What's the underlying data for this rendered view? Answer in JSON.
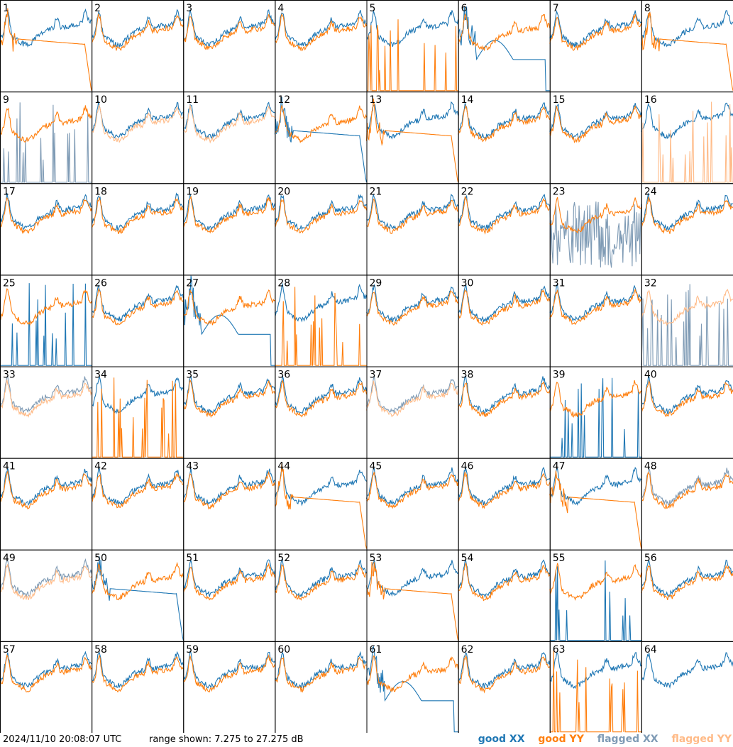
{
  "footer": {
    "timestamp": "2024/11/10 20:08:07 UTC",
    "range": "range shown: 7.275 to 27.275 dB"
  },
  "legend": [
    {
      "label": "good XX",
      "color": "#1f77b4"
    },
    {
      "label": "good YY",
      "color": "#ff7f0e"
    },
    {
      "label": "flagged XX",
      "color": "#7f9bb5"
    },
    {
      "label": "flagged YY",
      "color": "#ffbb88"
    }
  ],
  "colors": {
    "good_xx": "#1f77b4",
    "good_yy": "#ff7f0e",
    "flagged_xx": "#7f9bb5",
    "flagged_yy": "#ffbb88"
  },
  "chart_data": {
    "type": "line",
    "layout": "8x8 small multiples, one panel per antenna tile",
    "y_range_db": [
      7.275,
      27.275
    ],
    "panels": [
      {
        "id": 1,
        "xx": "good",
        "yy": "good",
        "yy_shape": "rolloff"
      },
      {
        "id": 2,
        "xx": "good",
        "yy": "good"
      },
      {
        "id": 3,
        "xx": "good",
        "yy": "good"
      },
      {
        "id": 4,
        "xx": "good",
        "yy": "good"
      },
      {
        "id": 5,
        "xx": "good",
        "yy": "good",
        "yy_shape": "spikes"
      },
      {
        "id": 6,
        "xx": "good",
        "yy": "good",
        "xx_shape": "dip"
      },
      {
        "id": 7,
        "xx": "good",
        "yy": "good"
      },
      {
        "id": 8,
        "xx": "good",
        "yy": "good",
        "yy_shape": "rolloff"
      },
      {
        "id": 9,
        "xx": "flagged",
        "yy": "good",
        "xx_shape": "spikes"
      },
      {
        "id": 10,
        "xx": "good",
        "yy": "flagged"
      },
      {
        "id": 11,
        "xx": "good",
        "yy": "flagged"
      },
      {
        "id": 12,
        "xx": "good",
        "yy": "good",
        "xx_shape": "rolloff"
      },
      {
        "id": 13,
        "xx": "good",
        "yy": "good",
        "yy_shape": "rolloff"
      },
      {
        "id": 14,
        "xx": "good",
        "yy": "good"
      },
      {
        "id": 15,
        "xx": "good",
        "yy": "good"
      },
      {
        "id": 16,
        "xx": "good",
        "yy": "flagged",
        "yy_shape": "spikes"
      },
      {
        "id": 17,
        "xx": "good",
        "yy": "good"
      },
      {
        "id": 18,
        "xx": "good",
        "yy": "good"
      },
      {
        "id": 19,
        "xx": "good",
        "yy": "good"
      },
      {
        "id": 20,
        "xx": "good",
        "yy": "good"
      },
      {
        "id": 21,
        "xx": "good",
        "yy": "good"
      },
      {
        "id": 22,
        "xx": "good",
        "yy": "good"
      },
      {
        "id": 23,
        "xx": "flagged",
        "yy": "good",
        "xx_shape": "noisy"
      },
      {
        "id": 24,
        "xx": "good",
        "yy": "good"
      },
      {
        "id": 25,
        "xx": "good",
        "yy": "good",
        "xx_shape": "spikes"
      },
      {
        "id": 26,
        "xx": "good",
        "yy": "good"
      },
      {
        "id": 27,
        "xx": "good",
        "yy": "good",
        "xx_shape": "dip"
      },
      {
        "id": 28,
        "xx": "good",
        "yy": "good",
        "yy_shape": "spikes"
      },
      {
        "id": 29,
        "xx": "good",
        "yy": "good"
      },
      {
        "id": 30,
        "xx": "good",
        "yy": "good"
      },
      {
        "id": 31,
        "xx": "good",
        "yy": "good"
      },
      {
        "id": 32,
        "xx": "flagged",
        "yy": "flagged",
        "xx_shape": "spikes"
      },
      {
        "id": 33,
        "xx": "flagged",
        "yy": "flagged"
      },
      {
        "id": 34,
        "xx": "good",
        "yy": "good",
        "yy_shape": "spikes"
      },
      {
        "id": 35,
        "xx": "good",
        "yy": "good"
      },
      {
        "id": 36,
        "xx": "good",
        "yy": "good"
      },
      {
        "id": 37,
        "xx": "flagged",
        "yy": "flagged"
      },
      {
        "id": 38,
        "xx": "good",
        "yy": "good"
      },
      {
        "id": 39,
        "xx": "good",
        "yy": "good",
        "xx_shape": "spikes"
      },
      {
        "id": 40,
        "xx": "good",
        "yy": "good"
      },
      {
        "id": 41,
        "xx": "good",
        "yy": "good"
      },
      {
        "id": 42,
        "xx": "good",
        "yy": "good"
      },
      {
        "id": 43,
        "xx": "good",
        "yy": "good"
      },
      {
        "id": 44,
        "xx": "good",
        "yy": "good",
        "yy_shape": "rolloff"
      },
      {
        "id": 45,
        "xx": "good",
        "yy": "good"
      },
      {
        "id": 46,
        "xx": "good",
        "yy": "good"
      },
      {
        "id": 47,
        "xx": "good",
        "yy": "good",
        "yy_shape": "rolloff"
      },
      {
        "id": 48,
        "xx": "flagged",
        "yy": "good"
      },
      {
        "id": 49,
        "xx": "flagged",
        "yy": "flagged"
      },
      {
        "id": 50,
        "xx": "good",
        "yy": "good",
        "xx_shape": "rolloff"
      },
      {
        "id": 51,
        "xx": "good",
        "yy": "good"
      },
      {
        "id": 52,
        "xx": "good",
        "yy": "good"
      },
      {
        "id": 53,
        "xx": "good",
        "yy": "good",
        "yy_shape": "rolloff"
      },
      {
        "id": 54,
        "xx": "good",
        "yy": "good"
      },
      {
        "id": 55,
        "xx": "good",
        "yy": "good",
        "xx_shape": "spikes"
      },
      {
        "id": 56,
        "xx": "good",
        "yy": "good"
      },
      {
        "id": 57,
        "xx": "good",
        "yy": "good"
      },
      {
        "id": 58,
        "xx": "good",
        "yy": "good"
      },
      {
        "id": 59,
        "xx": "good",
        "yy": "good"
      },
      {
        "id": 60,
        "xx": "good",
        "yy": "good"
      },
      {
        "id": 61,
        "xx": "good",
        "yy": "good",
        "xx_shape": "dip"
      },
      {
        "id": 62,
        "xx": "good",
        "yy": "good"
      },
      {
        "id": 63,
        "xx": "good",
        "yy": "good",
        "yy_shape": "spikes"
      },
      {
        "id": 64,
        "xx": "good",
        "yy": "good",
        "yy_shape": "absent"
      }
    ]
  }
}
